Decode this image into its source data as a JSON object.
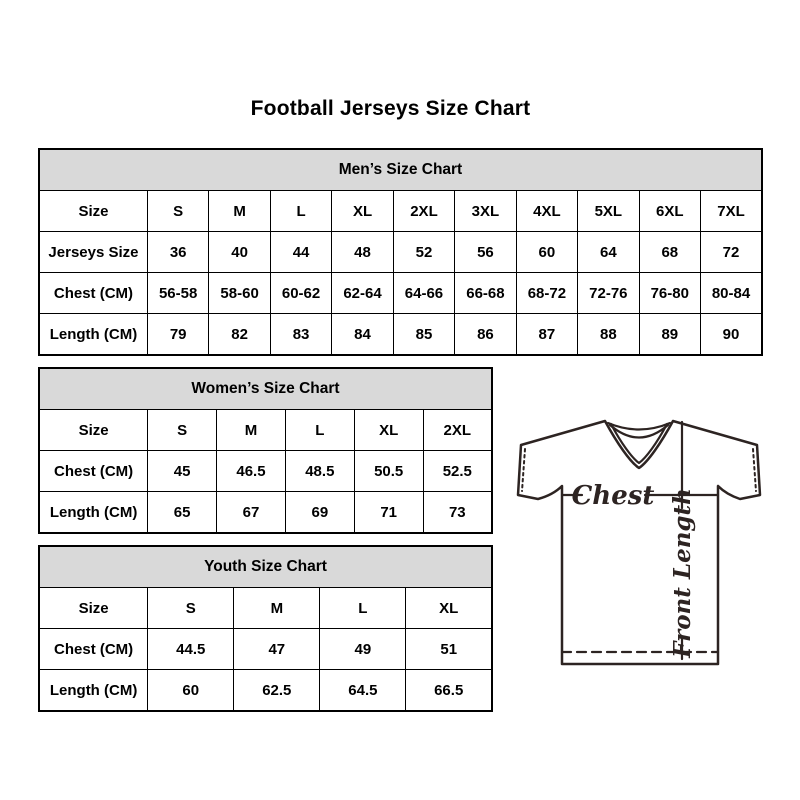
{
  "page": {
    "title": "Football Jerseys Size Chart"
  },
  "colors": {
    "background": "#ffffff",
    "table_header_bg": "#d9d9d9",
    "table_border": "#000000",
    "jersey_line": "#2d2422"
  },
  "tables": {
    "men": {
      "title": "Men’s Size Chart",
      "rows": [
        [
          "Size",
          "S",
          "M",
          "L",
          "XL",
          "2XL",
          "3XL",
          "4XL",
          "5XL",
          "6XL",
          "7XL"
        ],
        [
          "Jerseys Size",
          "36",
          "40",
          "44",
          "48",
          "52",
          "56",
          "60",
          "64",
          "68",
          "72"
        ],
        [
          "Chest (CM)",
          "56-58",
          "58-60",
          "60-62",
          "62-64",
          "64-66",
          "66-68",
          "68-72",
          "72-76",
          "76-80",
          "80-84"
        ],
        [
          "Length (CM)",
          "79",
          "82",
          "83",
          "84",
          "85",
          "86",
          "87",
          "88",
          "89",
          "90"
        ]
      ]
    },
    "women": {
      "title": "Women’s Size Chart",
      "rows": [
        [
          "Size",
          "S",
          "M",
          "L",
          "XL",
          "2XL"
        ],
        [
          "Chest (CM)",
          "45",
          "46.5",
          "48.5",
          "50.5",
          "52.5"
        ],
        [
          "Length (CM)",
          "65",
          "67",
          "69",
          "71",
          "73"
        ]
      ]
    },
    "youth": {
      "title": "Youth Size Chart",
      "rows": [
        [
          "Size",
          "S",
          "M",
          "L",
          "XL"
        ],
        [
          "Chest (CM)",
          "44.5",
          "47",
          "49",
          "51"
        ],
        [
          "Length (CM)",
          "60",
          "62.5",
          "64.5",
          "66.5"
        ]
      ]
    }
  },
  "diagram": {
    "chest_label": "Chest",
    "front_length_label": "Front Length"
  }
}
